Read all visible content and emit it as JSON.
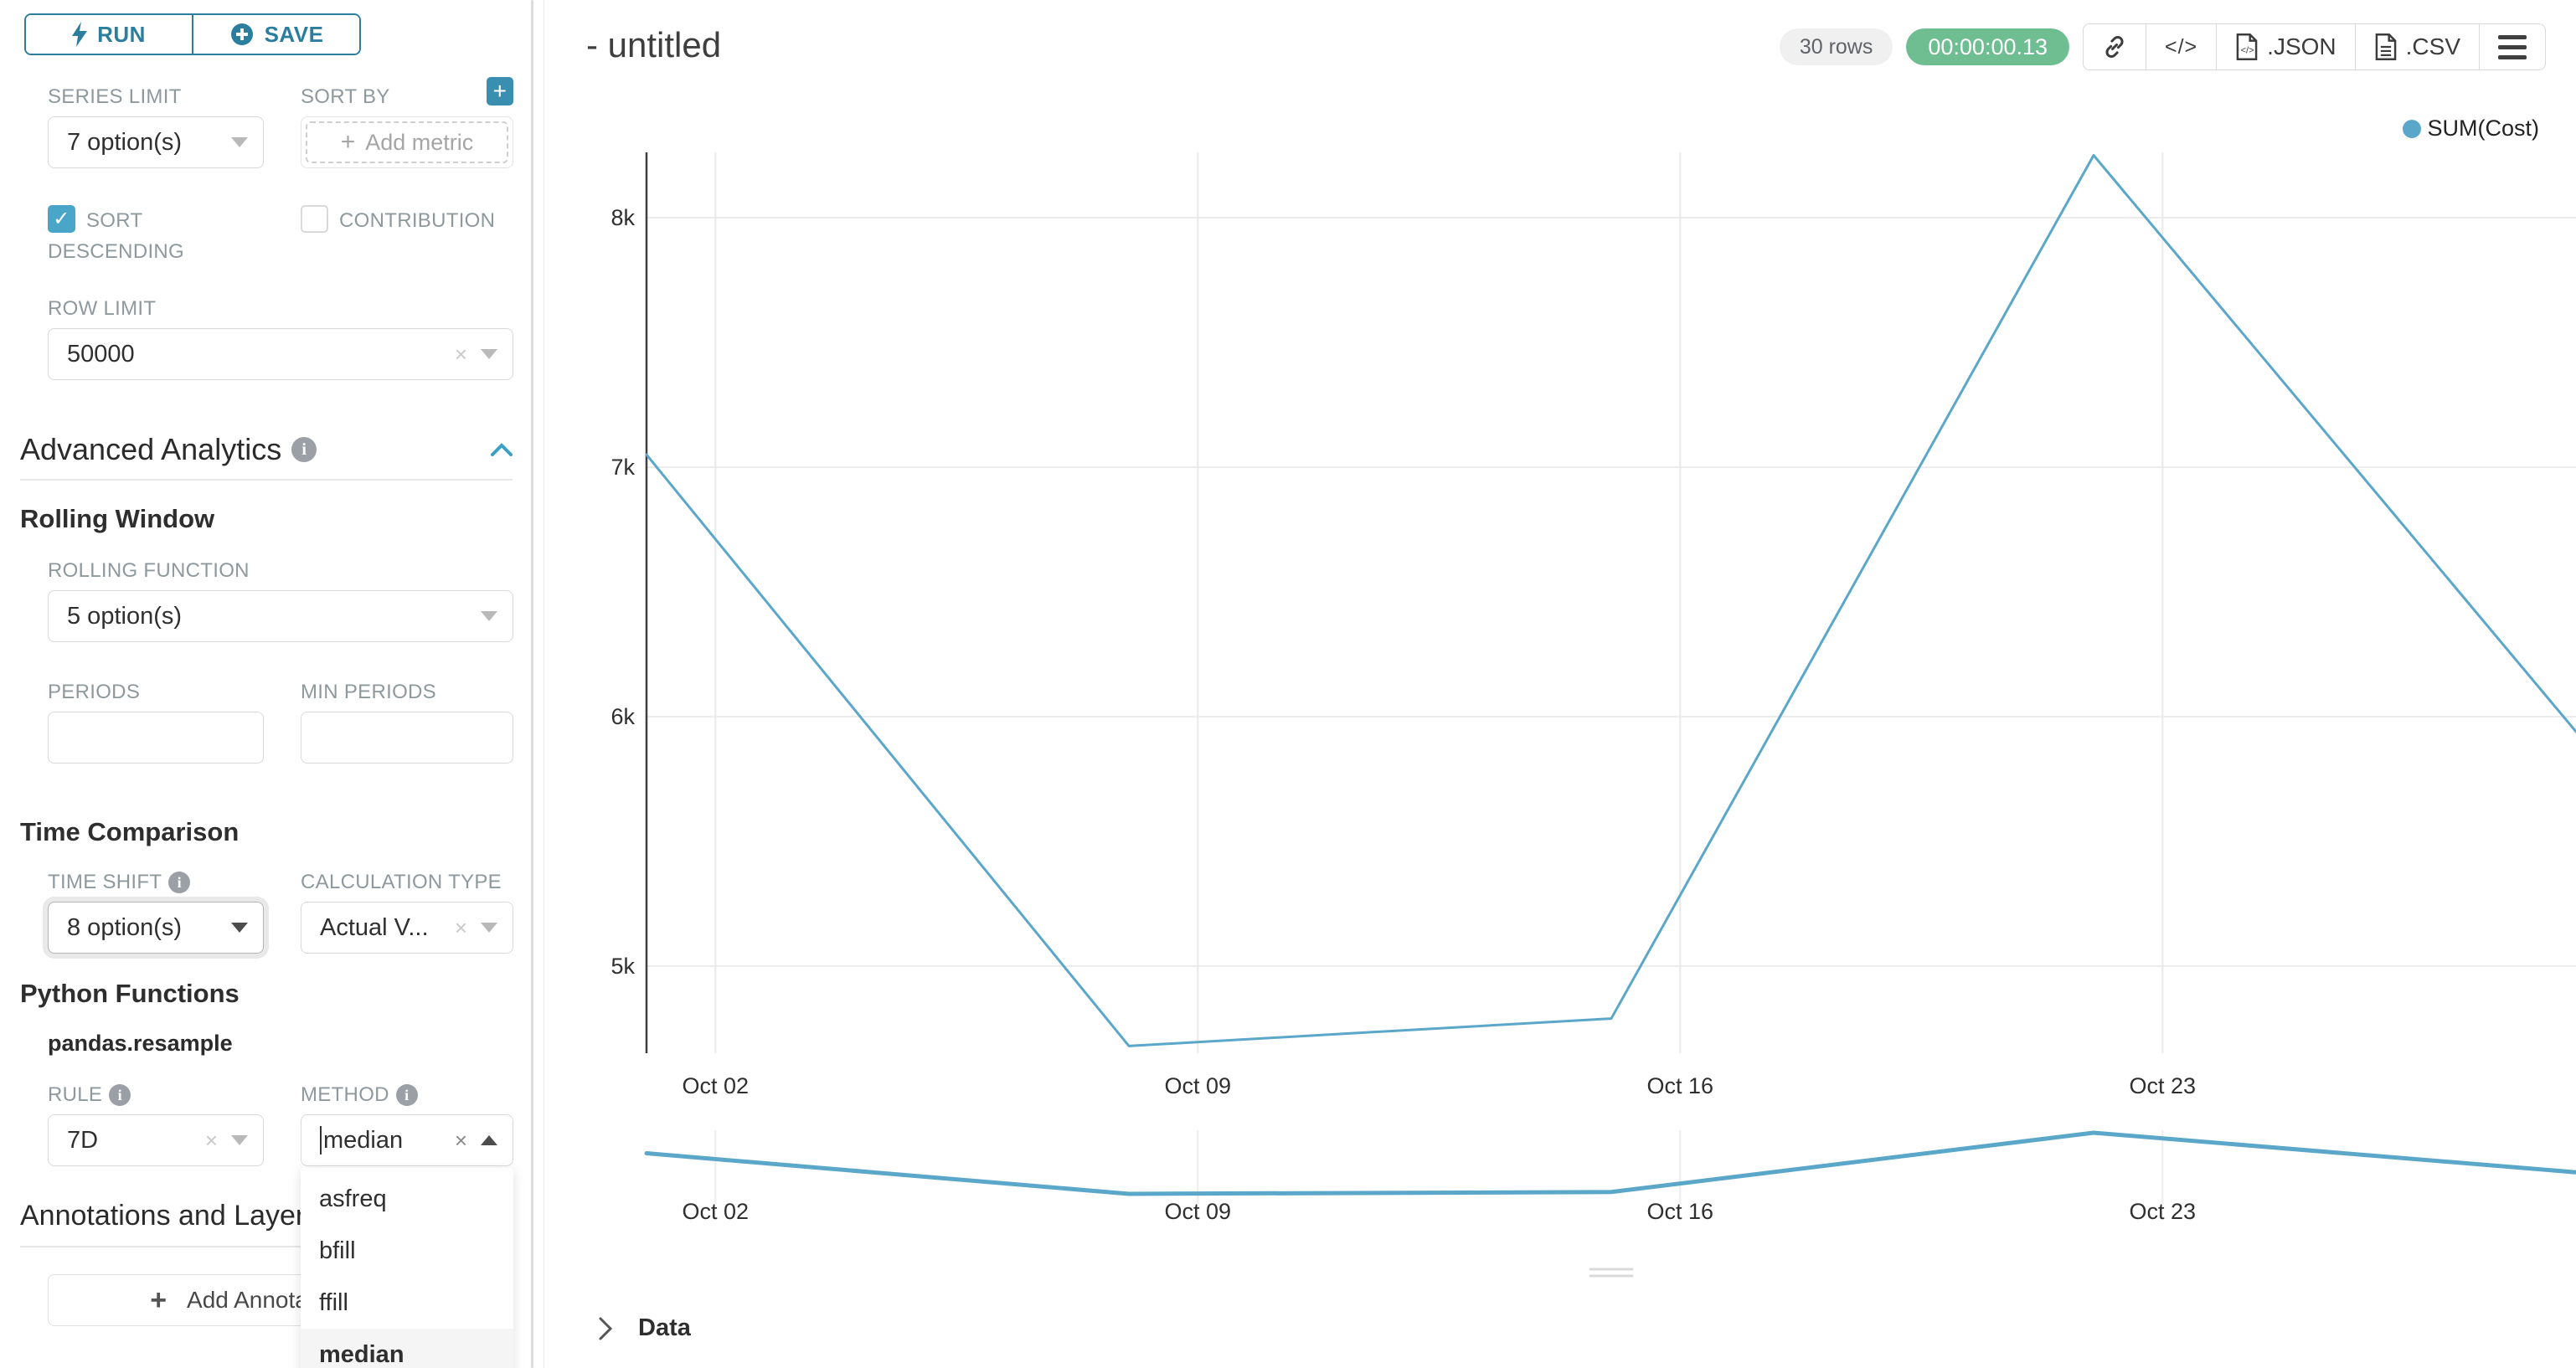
{
  "sidebar": {
    "run_button": {
      "label": "RUN"
    },
    "save_button": {
      "label": "SAVE"
    },
    "series_limit": {
      "label": "SERIES LIMIT",
      "value": "7 option(s)"
    },
    "sort_by": {
      "label": "SORT BY",
      "placeholder": "Add metric",
      "add_icon": "+"
    },
    "sort_descending": {
      "label": "SORT DESCENDING",
      "checked": true,
      "check_glyph": "✓"
    },
    "contribution": {
      "label": "CONTRIBUTION",
      "checked": false
    },
    "row_limit": {
      "label": "ROW LIMIT",
      "value": "50000"
    },
    "advanced_analytics": {
      "title": "Advanced Analytics",
      "rolling_window": {
        "title": "Rolling Window",
        "rolling_function": {
          "label": "ROLLING FUNCTION",
          "value": "5 option(s)"
        },
        "periods": {
          "label": "PERIODS",
          "value": ""
        },
        "min_periods": {
          "label": "MIN PERIODS",
          "value": ""
        }
      },
      "time_comparison": {
        "title": "Time Comparison",
        "time_shift": {
          "label": "TIME SHIFT",
          "value": "8 option(s)"
        },
        "calculation_type": {
          "label": "CALCULATION TYPE",
          "value": "Actual V..."
        }
      },
      "python_functions": {
        "title": "Python Functions",
        "subtitle": "pandas.resample",
        "rule": {
          "label": "RULE",
          "value": "7D"
        },
        "method": {
          "label": "METHOD",
          "value": "median",
          "options": [
            "asfreq",
            "bfill",
            "ffill",
            "median"
          ],
          "selected": "median"
        }
      }
    },
    "annotations": {
      "title": "Annotations and Layers",
      "add_button_label": "Add Annotation Layer"
    }
  },
  "header": {
    "title": "- untitled",
    "rows_badge": "30 rows",
    "timer_badge": "00:00:00.13",
    "buttons": {
      "link": "link-icon",
      "code": "code-icon",
      "json": ".JSON",
      "csv": ".CSV",
      "menu": "menu-icon"
    }
  },
  "chart_data": {
    "type": "line",
    "title": "",
    "xlabel": "",
    "ylabel": "",
    "grid": true,
    "legend": {
      "position": "top-right",
      "entries": [
        "SUM(Cost)"
      ]
    },
    "series": [
      {
        "name": "SUM(Cost)",
        "color": "#5BA7C9",
        "x": [
          "Oct 01",
          "Oct 08",
          "Oct 15",
          "Oct 22",
          "Oct 29"
        ],
        "day_offsets": [
          0,
          7,
          14,
          21,
          28
        ],
        "values": [
          7050,
          4680,
          4790,
          8250,
          5940
        ]
      }
    ],
    "x_ticks": [
      {
        "label": "Oct 02",
        "day": 1
      },
      {
        "label": "Oct 09",
        "day": 8
      },
      {
        "label": "Oct 16",
        "day": 15
      },
      {
        "label": "Oct 23",
        "day": 22
      }
    ],
    "y_ticks": [
      {
        "label": "5k",
        "value": 5000
      },
      {
        "label": "6k",
        "value": 6000
      },
      {
        "label": "7k",
        "value": 7000
      },
      {
        "label": "8k",
        "value": 8000
      }
    ],
    "ylim": [
      4650,
      8300
    ],
    "mini_preview": true
  },
  "data_panel": {
    "title": "Data"
  }
}
